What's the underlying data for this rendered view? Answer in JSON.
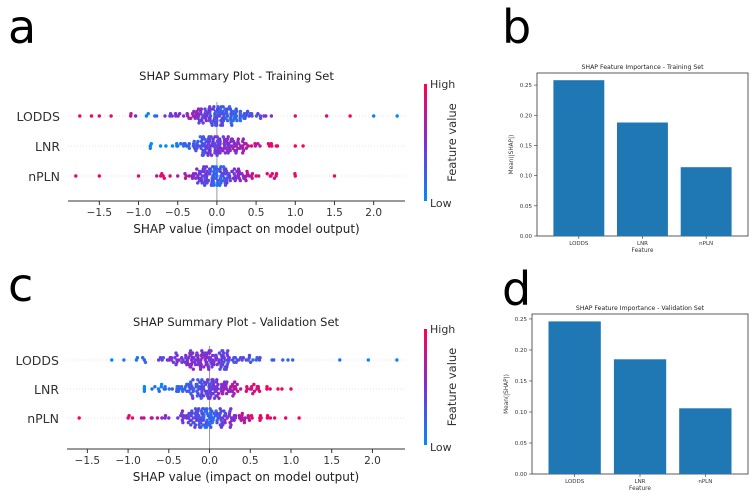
{
  "panels": {
    "a": "a",
    "b": "b",
    "c": "c",
    "d": "d"
  },
  "colors": {
    "bar": "#1f77b4",
    "high": "#ff0052",
    "mid": "#7b2fd6",
    "low": "#008bfb",
    "axis": "#000000"
  },
  "chart_data": [
    {
      "id": "a",
      "type": "scatter",
      "subtype": "shap-beeswarm",
      "title": "SHAP Summary Plot - Training Set",
      "xlabel": "SHAP value (impact on model output)",
      "xlim": [
        -1.9,
        2.4
      ],
      "xticks": [
        -1.5,
        -1.0,
        -0.5,
        0.0,
        0.5,
        1.0,
        1.5,
        2.0
      ],
      "xtick_labels": [
        "−1.5",
        "−1.0",
        "−0.5",
        "0.0",
        "0.5",
        "1.0",
        "1.5",
        "2.0"
      ],
      "features": [
        "LODDS",
        "LNR",
        "nPLN"
      ],
      "colorbar": {
        "label": "Feature value",
        "high": "High",
        "low": "Low"
      },
      "series": [
        {
          "name": "LODDS",
          "range": [
            -1.75,
            2.3
          ],
          "sample_points": [
            {
              "x": -1.75,
              "v": 1
            },
            {
              "x": -1.6,
              "v": 1
            },
            {
              "x": -1.5,
              "v": 0.9
            },
            {
              "x": -1.35,
              "v": 1
            },
            {
              "x": -1.1,
              "v": 0.8
            },
            {
              "x": -0.9,
              "v": 0.1
            },
            {
              "x": -0.6,
              "v": 0.5
            },
            {
              "x": -0.3,
              "v": 0.6
            },
            {
              "x": 0.0,
              "v": 0.3
            },
            {
              "x": 0.3,
              "v": 0.2
            },
            {
              "x": 0.6,
              "v": 0.4
            },
            {
              "x": 1.0,
              "v": 0.9
            },
            {
              "x": 1.4,
              "v": 1
            },
            {
              "x": 1.7,
              "v": 1
            },
            {
              "x": 2.0,
              "v": 0
            },
            {
              "x": 2.3,
              "v": 0
            }
          ]
        },
        {
          "name": "LNR",
          "range": [
            -0.85,
            1.1
          ],
          "sample_points": [
            {
              "x": -0.85,
              "v": 0
            },
            {
              "x": -0.5,
              "v": 0.1
            },
            {
              "x": -0.2,
              "v": 0.3
            },
            {
              "x": 0.1,
              "v": 0.5
            },
            {
              "x": 0.4,
              "v": 0.7
            },
            {
              "x": 0.7,
              "v": 0.9
            },
            {
              "x": 1.0,
              "v": 1
            },
            {
              "x": 1.1,
              "v": 1
            }
          ]
        },
        {
          "name": "nPLN",
          "range": [
            -1.8,
            1.5
          ],
          "sample_points": [
            {
              "x": -1.8,
              "v": 1
            },
            {
              "x": -1.5,
              "v": 1
            },
            {
              "x": -1.0,
              "v": 1
            },
            {
              "x": -0.5,
              "v": 0.8
            },
            {
              "x": 0.0,
              "v": 0.2
            },
            {
              "x": 0.5,
              "v": 0.8
            },
            {
              "x": 1.0,
              "v": 1
            },
            {
              "x": 1.5,
              "v": 1
            }
          ]
        }
      ]
    },
    {
      "id": "b",
      "type": "bar",
      "title": "SHAP Feature Importance - Training Set",
      "xlabel": "Feature",
      "ylabel": "Mean(|SHAP|)",
      "categories": [
        "LODDS",
        "LNR",
        "nPLN"
      ],
      "values": [
        0.258,
        0.188,
        0.114
      ],
      "ylim": [
        0,
        0.27
      ],
      "yticks": [
        0.0,
        0.05,
        0.1,
        0.15,
        0.2,
        0.25
      ],
      "ytick_labels": [
        "0.00",
        "0.05",
        "0.10",
        "0.15",
        "0.20",
        "0.25"
      ]
    },
    {
      "id": "c",
      "type": "scatter",
      "subtype": "shap-beeswarm",
      "title": "SHAP Summary Plot - Validation Set",
      "xlabel": "SHAP value (impact on model output)",
      "xlim": [
        -1.75,
        2.4
      ],
      "xticks": [
        -1.5,
        -1.0,
        -0.5,
        0.0,
        0.5,
        1.0,
        1.5,
        2.0
      ],
      "xtick_labels": [
        "−1.5",
        "−1.0",
        "−0.5",
        "0.0",
        "0.5",
        "1.0",
        "1.5",
        "2.0"
      ],
      "features": [
        "LODDS",
        "LNR",
        "nPLN"
      ],
      "colorbar": {
        "label": "Feature value",
        "high": "High",
        "low": "Low"
      },
      "series": [
        {
          "name": "LODDS",
          "range": [
            -1.2,
            2.3
          ],
          "sample_points": [
            {
              "x": -1.2,
              "v": 0
            },
            {
              "x": -0.8,
              "v": 0.2
            },
            {
              "x": -0.4,
              "v": 0.5
            },
            {
              "x": 0.0,
              "v": 0.5
            },
            {
              "x": 0.4,
              "v": 0.3
            },
            {
              "x": 0.9,
              "v": 0.2
            },
            {
              "x": 1.6,
              "v": 0
            },
            {
              "x": 1.95,
              "v": 0
            },
            {
              "x": 2.3,
              "v": 0
            }
          ]
        },
        {
          "name": "LNR",
          "range": [
            -0.8,
            1.0
          ],
          "sample_points": [
            {
              "x": -0.8,
              "v": 0
            },
            {
              "x": -0.4,
              "v": 0.2
            },
            {
              "x": 0.0,
              "v": 0.4
            },
            {
              "x": 0.3,
              "v": 0.7
            },
            {
              "x": 0.6,
              "v": 0.9
            },
            {
              "x": 1.0,
              "v": 1
            }
          ]
        },
        {
          "name": "nPLN",
          "range": [
            -1.6,
            1.1
          ],
          "sample_points": [
            {
              "x": -1.6,
              "v": 1
            },
            {
              "x": -1.0,
              "v": 0.9
            },
            {
              "x": -0.5,
              "v": 0.6
            },
            {
              "x": 0.0,
              "v": 0.2
            },
            {
              "x": 0.4,
              "v": 0.7
            },
            {
              "x": 0.8,
              "v": 1
            },
            {
              "x": 1.1,
              "v": 1
            }
          ]
        }
      ]
    },
    {
      "id": "d",
      "type": "bar",
      "title": "SHAP Feature Importance - Validation Set",
      "xlabel": "Feature",
      "ylabel": "Mean(|SHAP|)",
      "categories": [
        "LODDS",
        "LNR",
        "nPLN"
      ],
      "values": [
        0.246,
        0.185,
        0.106
      ],
      "ylim": [
        0,
        0.258
      ],
      "yticks": [
        0.0,
        0.05,
        0.1,
        0.15,
        0.2,
        0.25
      ],
      "ytick_labels": [
        "0.00",
        "0.05",
        "0.10",
        "0.15",
        "0.20",
        "0.25"
      ]
    }
  ]
}
